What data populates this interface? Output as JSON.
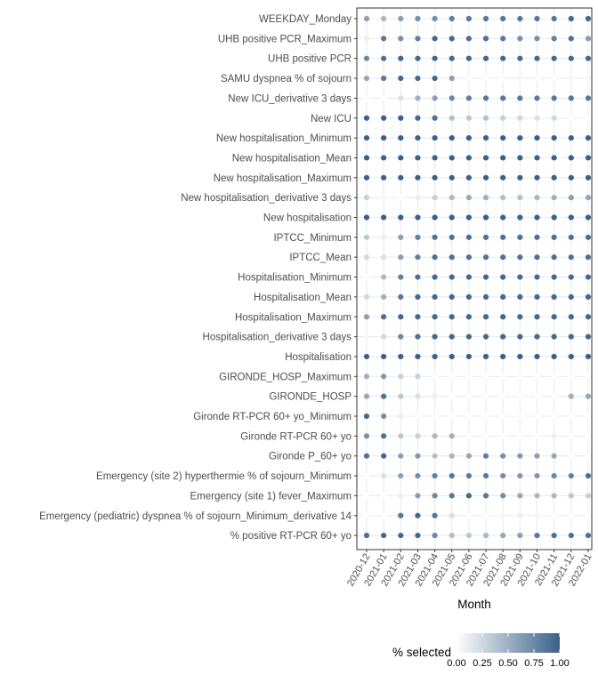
{
  "chart_data": {
    "type": "scatter",
    "xlabel": "Month",
    "ylabel": "",
    "x": [
      "2020-12",
      "2021-01",
      "2021-02",
      "2021-03",
      "2021-04",
      "2021-05",
      "2021-06",
      "2021-07",
      "2021-08",
      "2021-09",
      "2021-10",
      "2021-11",
      "2021-12",
      "2022-01"
    ],
    "y": [
      "WEEKDAY_Monday",
      "UHB positive PCR_Maximum",
      "UHB positive PCR",
      "SAMU dyspnea % of sojourn",
      "New ICU_derivative 3 days",
      "New ICU",
      "New hospitalisation_Minimum",
      "New hospitalisation_Mean",
      "New hospitalisation_Maximum",
      "New hospitalisation_derivative 3 days",
      "New hospitalisation",
      "IPTCC_Minimum",
      "IPTCC_Mean",
      "Hospitalisation_Minimum",
      "Hospitalisation_Mean",
      "Hospitalisation_Maximum",
      "Hospitalisation_derivative 3 days",
      "Hospitalisation",
      "GIRONDE_HOSP_Maximum",
      "GIRONDE_HOSP",
      "Gironde RT-PCR 60+ yo_Minimum",
      "Gironde RT-PCR 60+ yo",
      "Gironde P_60+ yo",
      "Emergency (site 2) hyperthermie % of sojourn_Minimum",
      "Emergency (site 1) fever_Maximum",
      "Emergency (pediatric) dyspnea % of sojourn_Minimum_derivative 14",
      "% positive RT-PCR 60+ yo"
    ],
    "values": [
      [
        0.6,
        0.45,
        0.6,
        0.7,
        0.7,
        0.8,
        0.85,
        0.85,
        0.85,
        0.85,
        0.85,
        0.85,
        0.95,
        0.95
      ],
      [
        0.1,
        0.85,
        0.7,
        0.8,
        0.95,
        0.95,
        0.9,
        0.9,
        0.85,
        0.7,
        0.7,
        0.8,
        0.9,
        0.6
      ],
      [
        0.75,
        0.9,
        0.95,
        0.95,
        0.95,
        0.95,
        0.95,
        0.95,
        0.95,
        0.95,
        0.95,
        0.95,
        0.95,
        0.95
      ],
      [
        0.55,
        0.85,
        0.95,
        0.95,
        0.95,
        0.6,
        0.0,
        0.0,
        0.0,
        0.05,
        0.0,
        0.0,
        0.05,
        0.05
      ],
      [
        0.0,
        0.0,
        0.2,
        0.5,
        0.6,
        0.75,
        0.8,
        0.85,
        0.85,
        0.85,
        0.85,
        0.85,
        0.85,
        0.85
      ],
      [
        1.0,
        1.0,
        1.0,
        0.95,
        0.9,
        0.4,
        0.35,
        0.4,
        0.3,
        0.25,
        0.2,
        0.25,
        0.0,
        0.0
      ],
      [
        1.0,
        1.0,
        1.0,
        1.0,
        1.0,
        1.0,
        1.0,
        1.0,
        1.0,
        1.0,
        1.0,
        1.0,
        1.0,
        1.0
      ],
      [
        1.0,
        1.0,
        1.0,
        1.0,
        1.0,
        1.0,
        1.0,
        1.0,
        1.0,
        1.0,
        1.0,
        1.0,
        1.0,
        1.0
      ],
      [
        1.0,
        1.0,
        1.0,
        1.0,
        1.0,
        1.0,
        1.0,
        1.0,
        1.0,
        1.0,
        1.0,
        1.0,
        1.0,
        1.0
      ],
      [
        0.3,
        0.05,
        0.0,
        0.1,
        0.3,
        0.45,
        0.55,
        0.5,
        0.4,
        0.4,
        0.45,
        0.5,
        0.6,
        0.55
      ],
      [
        1.0,
        1.0,
        1.0,
        1.0,
        1.0,
        1.0,
        1.0,
        1.0,
        1.0,
        1.0,
        1.0,
        1.0,
        1.0,
        1.0
      ],
      [
        0.35,
        0.1,
        0.6,
        0.8,
        0.9,
        0.9,
        0.9,
        0.9,
        0.9,
        0.9,
        0.9,
        0.9,
        0.9,
        0.9
      ],
      [
        0.25,
        0.2,
        0.6,
        0.8,
        0.9,
        0.9,
        0.9,
        0.9,
        0.9,
        0.9,
        0.9,
        0.9,
        0.9,
        0.9
      ],
      [
        0.0,
        0.45,
        0.8,
        0.9,
        0.95,
        0.95,
        0.95,
        0.95,
        0.95,
        0.95,
        0.95,
        0.95,
        0.95,
        0.95
      ],
      [
        0.25,
        0.5,
        0.85,
        0.95,
        0.95,
        0.95,
        0.95,
        0.95,
        0.95,
        0.95,
        0.95,
        0.95,
        0.95,
        0.95
      ],
      [
        0.6,
        0.9,
        0.95,
        0.95,
        0.95,
        0.95,
        0.95,
        0.95,
        0.95,
        0.95,
        0.95,
        0.95,
        0.95,
        0.95
      ],
      [
        0.05,
        0.25,
        0.75,
        0.9,
        0.95,
        0.95,
        0.95,
        0.95,
        0.95,
        0.95,
        0.95,
        0.95,
        0.95,
        0.95
      ],
      [
        1.0,
        1.0,
        1.0,
        1.0,
        1.0,
        1.0,
        1.0,
        1.0,
        1.0,
        1.0,
        1.0,
        1.0,
        1.0,
        1.0
      ],
      [
        0.5,
        0.65,
        0.3,
        0.3,
        0.0,
        0.0,
        0.0,
        0.0,
        0.0,
        0.0,
        0.0,
        0.0,
        0.0,
        0.0
      ],
      [
        0.55,
        0.9,
        0.35,
        0.2,
        0.1,
        0.0,
        0.0,
        0.0,
        0.0,
        0.0,
        0.0,
        0.0,
        0.5,
        0.55
      ],
      [
        0.95,
        0.7,
        0.1,
        0.0,
        0.0,
        0.0,
        0.0,
        0.0,
        0.0,
        0.0,
        0.0,
        0.0,
        0.0,
        0.0
      ],
      [
        0.7,
        0.9,
        0.35,
        0.3,
        0.45,
        0.5,
        0.0,
        0.0,
        0.0,
        0.0,
        0.0,
        0.1,
        0.0,
        0.0
      ],
      [
        0.9,
        0.95,
        0.6,
        0.65,
        0.4,
        0.45,
        0.55,
        0.8,
        0.7,
        0.65,
        0.6,
        0.55,
        0.0,
        0.0
      ],
      [
        0.0,
        0.2,
        0.6,
        0.7,
        0.8,
        0.85,
        0.85,
        0.85,
        0.7,
        0.65,
        0.65,
        0.75,
        0.8,
        0.9
      ],
      [
        0.0,
        0.0,
        0.1,
        0.6,
        0.75,
        0.85,
        0.95,
        0.85,
        0.7,
        0.55,
        0.45,
        0.45,
        0.35,
        0.3
      ],
      [
        0.0,
        0.0,
        0.85,
        0.95,
        0.85,
        0.2,
        0.0,
        0.0,
        0.05,
        0.1,
        0.05,
        0.0,
        0.0,
        0.0
      ],
      [
        0.9,
        0.95,
        0.95,
        0.95,
        0.75,
        0.4,
        0.35,
        0.45,
        0.55,
        0.6,
        0.85,
        0.9,
        0.9,
        0.9
      ]
    ],
    "legend": {
      "title": "% selected",
      "ticks": [
        "0.00",
        "0.25",
        "0.50",
        "0.75",
        "1.00"
      ],
      "position": "bottom",
      "color_low": "#ffffff",
      "color_high": "#3a6189"
    },
    "grid": true
  }
}
